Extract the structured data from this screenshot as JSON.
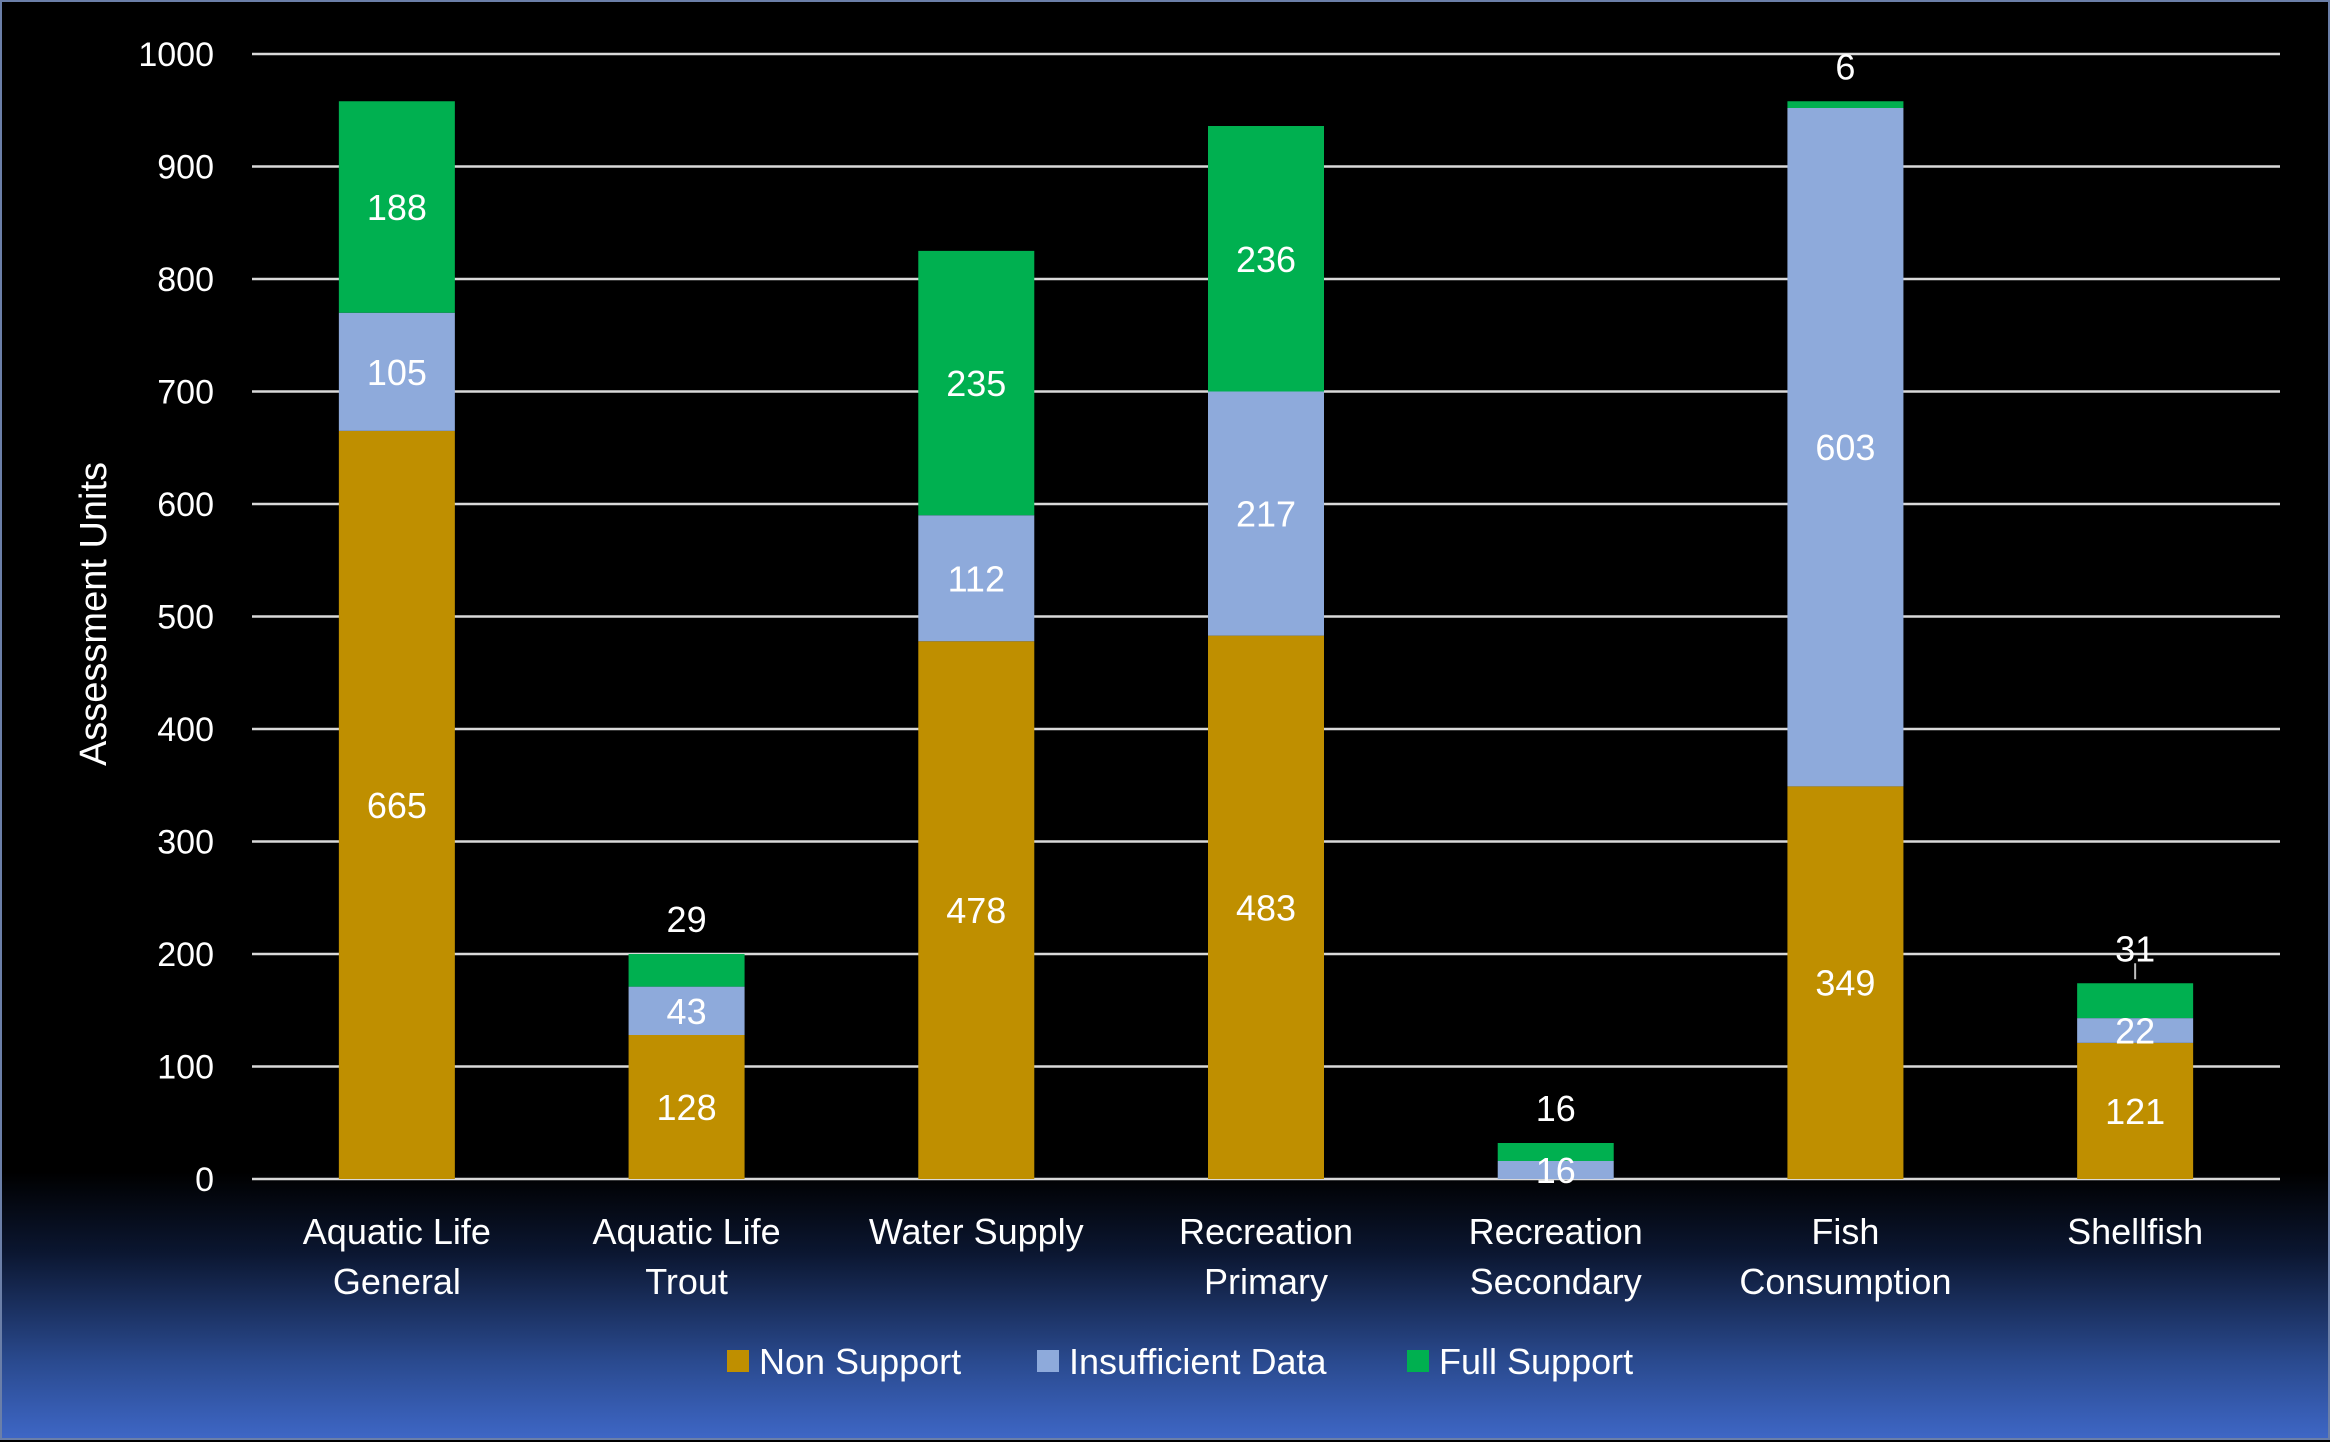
{
  "chart_data": {
    "type": "bar",
    "stacked": true,
    "title": "",
    "xlabel": "",
    "ylabel": "Assessment Units",
    "ylim": [
      0,
      1000
    ],
    "yticks": [
      0,
      100,
      200,
      300,
      400,
      500,
      600,
      700,
      800,
      900,
      1000
    ],
    "grid": true,
    "legend_position": "bottom",
    "categories": [
      [
        "Aquatic Life",
        "General"
      ],
      [
        "Aquatic Life",
        "Trout"
      ],
      [
        "Water Supply"
      ],
      [
        "Recreation",
        "Primary"
      ],
      [
        "Recreation",
        "Secondary"
      ],
      [
        "Fish",
        "Consumption"
      ],
      [
        "Shellfish"
      ]
    ],
    "series": [
      {
        "name": "Non Support",
        "color": "#bf8f00",
        "values": [
          665,
          128,
          478,
          483,
          0,
          349,
          121
        ],
        "labels": [
          "665",
          "128",
          "478",
          "483",
          "",
          "349",
          "121"
        ]
      },
      {
        "name": "Insufficient Data",
        "color": "#8eaadb",
        "values": [
          105,
          43,
          112,
          217,
          16,
          603,
          22
        ],
        "labels": [
          "105",
          "43",
          "112",
          "217",
          "16",
          "603",
          "22"
        ]
      },
      {
        "name": "Full Support",
        "color": "#00b050",
        "values": [
          188,
          29,
          235,
          236,
          16,
          6,
          31
        ],
        "labels": [
          "188",
          "29",
          "235",
          "236",
          "16",
          "6",
          "31"
        ]
      }
    ]
  }
}
